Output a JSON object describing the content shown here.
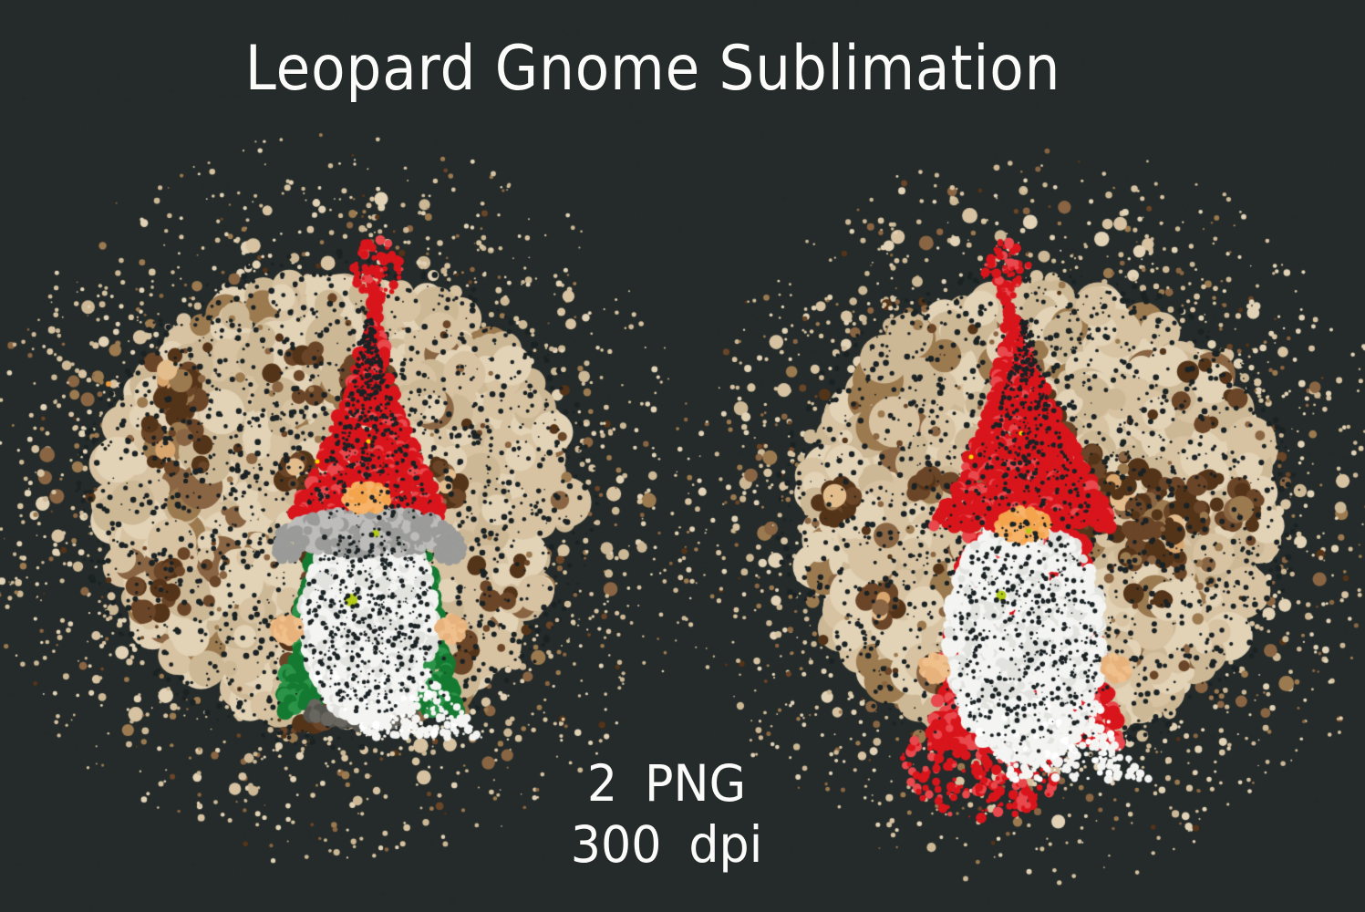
{
  "title": "Leopard Gnome Sublimation",
  "footer": {
    "line1": "2 PNG",
    "line2": "300 dpi"
  },
  "colors": {
    "background": "#242b2a",
    "title_text": "#fbfbf9",
    "footer_text": "#fbfbf9",
    "leopard": {
      "cream": [
        "#d7c3a2",
        "#e2d2b6",
        "#cdb896"
      ],
      "peach": [
        "#d9a76e",
        "#e4bd8d"
      ],
      "brown_mid": [
        "#8a6543",
        "#9c7a50"
      ],
      "brown_dark": [
        "#543419",
        "#6b4527"
      ],
      "speckle": "#1b2224"
    },
    "gnome": {
      "hat_red": "#d9151c",
      "hat_red_light": "#e9484d",
      "brim_gray": "#9b9b99",
      "brim_gray_light": "#bdbcba",
      "beard_white": "#f4f4f2",
      "beard_shadow": "#e2e3df",
      "nose_orange": "#f4a44c",
      "nose_orange_light": "#f7b369",
      "hand_tan": "#f0c08c",
      "hand_tan_dark": "#e8b27c",
      "feet_gray": "#55544f",
      "feet_gray_light": "#68665f",
      "lime_accent": "#b4cc17",
      "yellow_accent": "#ffd400"
    }
  },
  "gnomes": [
    {
      "name": "green-gnome",
      "variant": "green",
      "body_color": "#157a31",
      "body_color_light": "#2b9448",
      "has_brim": true,
      "has_feet": true
    },
    {
      "name": "red-gnome",
      "variant": "red",
      "body_color": "#d9151c",
      "body_color_light": "#e9484d",
      "has_brim": false,
      "has_feet": false
    }
  ]
}
